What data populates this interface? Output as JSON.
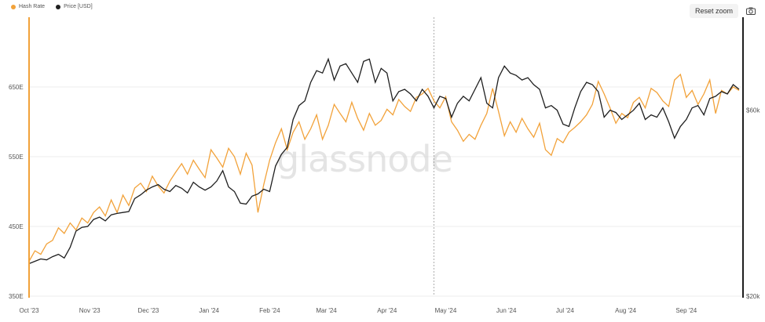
{
  "legend": {
    "hash_rate_label": "Hash Rate",
    "price_label": "Price [USD]"
  },
  "toolbar": {
    "reset_zoom_label": "Reset zoom",
    "camera_icon": "camera-icon"
  },
  "watermark": "glassnode",
  "colors": {
    "hash_rate": "#f2a23a",
    "price": "#1f1f1f",
    "left_axis": "#f2a23a",
    "right_axis": "#1f1f1f",
    "grid": "#eeeeee"
  },
  "chart_data": {
    "type": "line",
    "x_ticks": [
      "Oct '23",
      "Nov '23",
      "Dec '23",
      "Jan '24",
      "Feb '24",
      "Mar '24",
      "Apr '24",
      "May '24",
      "Jun '24",
      "Jul '24",
      "Aug '24",
      "Sep '24"
    ],
    "x_range": [
      0,
      365
    ],
    "x_tick_days": [
      0,
      31,
      61,
      92,
      123,
      152,
      183,
      213,
      244,
      274,
      305,
      336
    ],
    "crosshair_day": 207,
    "y_left": {
      "ticks": [
        "350E",
        "450E",
        "550E",
        "650E"
      ],
      "range": [
        350,
        750
      ],
      "label": ""
    },
    "y_right": {
      "ticks": [
        "$20k",
        "$60k"
      ],
      "range": [
        20000,
        80000
      ],
      "label": ""
    },
    "grid": true,
    "legend_position": "top-left",
    "series": [
      {
        "name": "Hash Rate",
        "axis": "left",
        "x": [
          0,
          3,
          6,
          9,
          12,
          15,
          18,
          21,
          24,
          27,
          30,
          33,
          36,
          39,
          42,
          45,
          48,
          51,
          54,
          57,
          60,
          63,
          66,
          69,
          72,
          75,
          78,
          81,
          84,
          87,
          90,
          93,
          96,
          99,
          102,
          105,
          108,
          111,
          114,
          117,
          120,
          123,
          126,
          129,
          132,
          135,
          138,
          141,
          144,
          147,
          150,
          153,
          156,
          159,
          162,
          165,
          168,
          171,
          174,
          177,
          180,
          183,
          186,
          189,
          192,
          195,
          198,
          201,
          204,
          207,
          210,
          213,
          216,
          219,
          222,
          225,
          228,
          231,
          234,
          237,
          240,
          243,
          246,
          249,
          252,
          255,
          258,
          261,
          264,
          267,
          270,
          273,
          276,
          279,
          282,
          285,
          288,
          291,
          294,
          297,
          300,
          303,
          306,
          309,
          312,
          315,
          318,
          321,
          324,
          327,
          330,
          333,
          336,
          339,
          342,
          345,
          348,
          351,
          354,
          357,
          360,
          363
        ],
        "values": [
          400,
          415,
          410,
          425,
          430,
          448,
          440,
          455,
          445,
          462,
          455,
          470,
          478,
          465,
          488,
          470,
          495,
          480,
          505,
          512,
          500,
          522,
          508,
          498,
          515,
          528,
          540,
          525,
          545,
          532,
          520,
          560,
          548,
          535,
          562,
          550,
          525,
          555,
          538,
          470,
          510,
          545,
          570,
          590,
          560,
          585,
          600,
          575,
          590,
          610,
          575,
          595,
          625,
          612,
          600,
          628,
          605,
          588,
          612,
          595,
          602,
          618,
          610,
          632,
          622,
          615,
          635,
          640,
          648,
          630,
          620,
          636,
          600,
          588,
          572,
          582,
          575,
          595,
          612,
          648,
          615,
          580,
          600,
          585,
          605,
          590,
          578,
          598,
          560,
          552,
          576,
          570,
          585,
          592,
          600,
          610,
          625,
          658,
          640,
          620,
          598,
          612,
          606,
          628,
          635,
          620,
          648,
          642,
          630,
          622,
          660,
          668,
          635,
          645,
          625,
          640,
          660,
          612,
          645,
          640,
          650,
          645
        ]
      },
      {
        "name": "Price [USD]",
        "axis": "right",
        "x": [
          0,
          3,
          6,
          9,
          12,
          15,
          18,
          21,
          24,
          27,
          30,
          33,
          36,
          39,
          42,
          45,
          48,
          51,
          54,
          57,
          60,
          63,
          66,
          69,
          72,
          75,
          78,
          81,
          84,
          87,
          90,
          93,
          96,
          99,
          102,
          105,
          108,
          111,
          114,
          117,
          120,
          123,
          126,
          129,
          132,
          135,
          138,
          141,
          144,
          147,
          150,
          153,
          156,
          159,
          162,
          165,
          168,
          171,
          174,
          177,
          180,
          183,
          186,
          189,
          192,
          195,
          198,
          201,
          204,
          207,
          210,
          213,
          216,
          219,
          222,
          225,
          228,
          231,
          234,
          237,
          240,
          243,
          246,
          249,
          252,
          255,
          258,
          261,
          264,
          267,
          270,
          273,
          276,
          279,
          282,
          285,
          288,
          291,
          294,
          297,
          300,
          303,
          306,
          309,
          312,
          315,
          318,
          321,
          324,
          327,
          330,
          333,
          336,
          339,
          342,
          345,
          348,
          351,
          354,
          357,
          360,
          363
        ],
        "values": [
          27000,
          27500,
          28000,
          27800,
          28500,
          29000,
          28200,
          30500,
          34000,
          34800,
          35000,
          36500,
          37000,
          36200,
          37500,
          37800,
          38000,
          38200,
          41000,
          41800,
          42800,
          43500,
          44000,
          43000,
          42500,
          43800,
          43200,
          42200,
          44500,
          43500,
          42800,
          43500,
          44800,
          47000,
          43500,
          42500,
          40000,
          39800,
          41500,
          42000,
          43000,
          42500,
          48000,
          50500,
          52000,
          58000,
          61000,
          62000,
          66000,
          68500,
          68000,
          71000,
          66500,
          69500,
          70000,
          68000,
          66000,
          70500,
          71000,
          66000,
          69000,
          68000,
          62000,
          64000,
          64500,
          63500,
          62000,
          64500,
          63000,
          60500,
          63000,
          62500,
          58500,
          61500,
          63000,
          62000,
          64500,
          67000,
          61500,
          60500,
          67000,
          69500,
          68000,
          67500,
          66500,
          67000,
          65500,
          64500,
          60500,
          61000,
          60000,
          57000,
          56500,
          60500,
          64000,
          66000,
          65500,
          64000,
          58500,
          60000,
          59500,
          58000,
          59000,
          60000,
          61500,
          58000,
          59000,
          58500,
          60500,
          57500,
          54000,
          56500,
          58000,
          60500,
          61000,
          59000,
          62500,
          63000,
          64000,
          63500,
          65500,
          64500
        ]
      }
    ]
  }
}
